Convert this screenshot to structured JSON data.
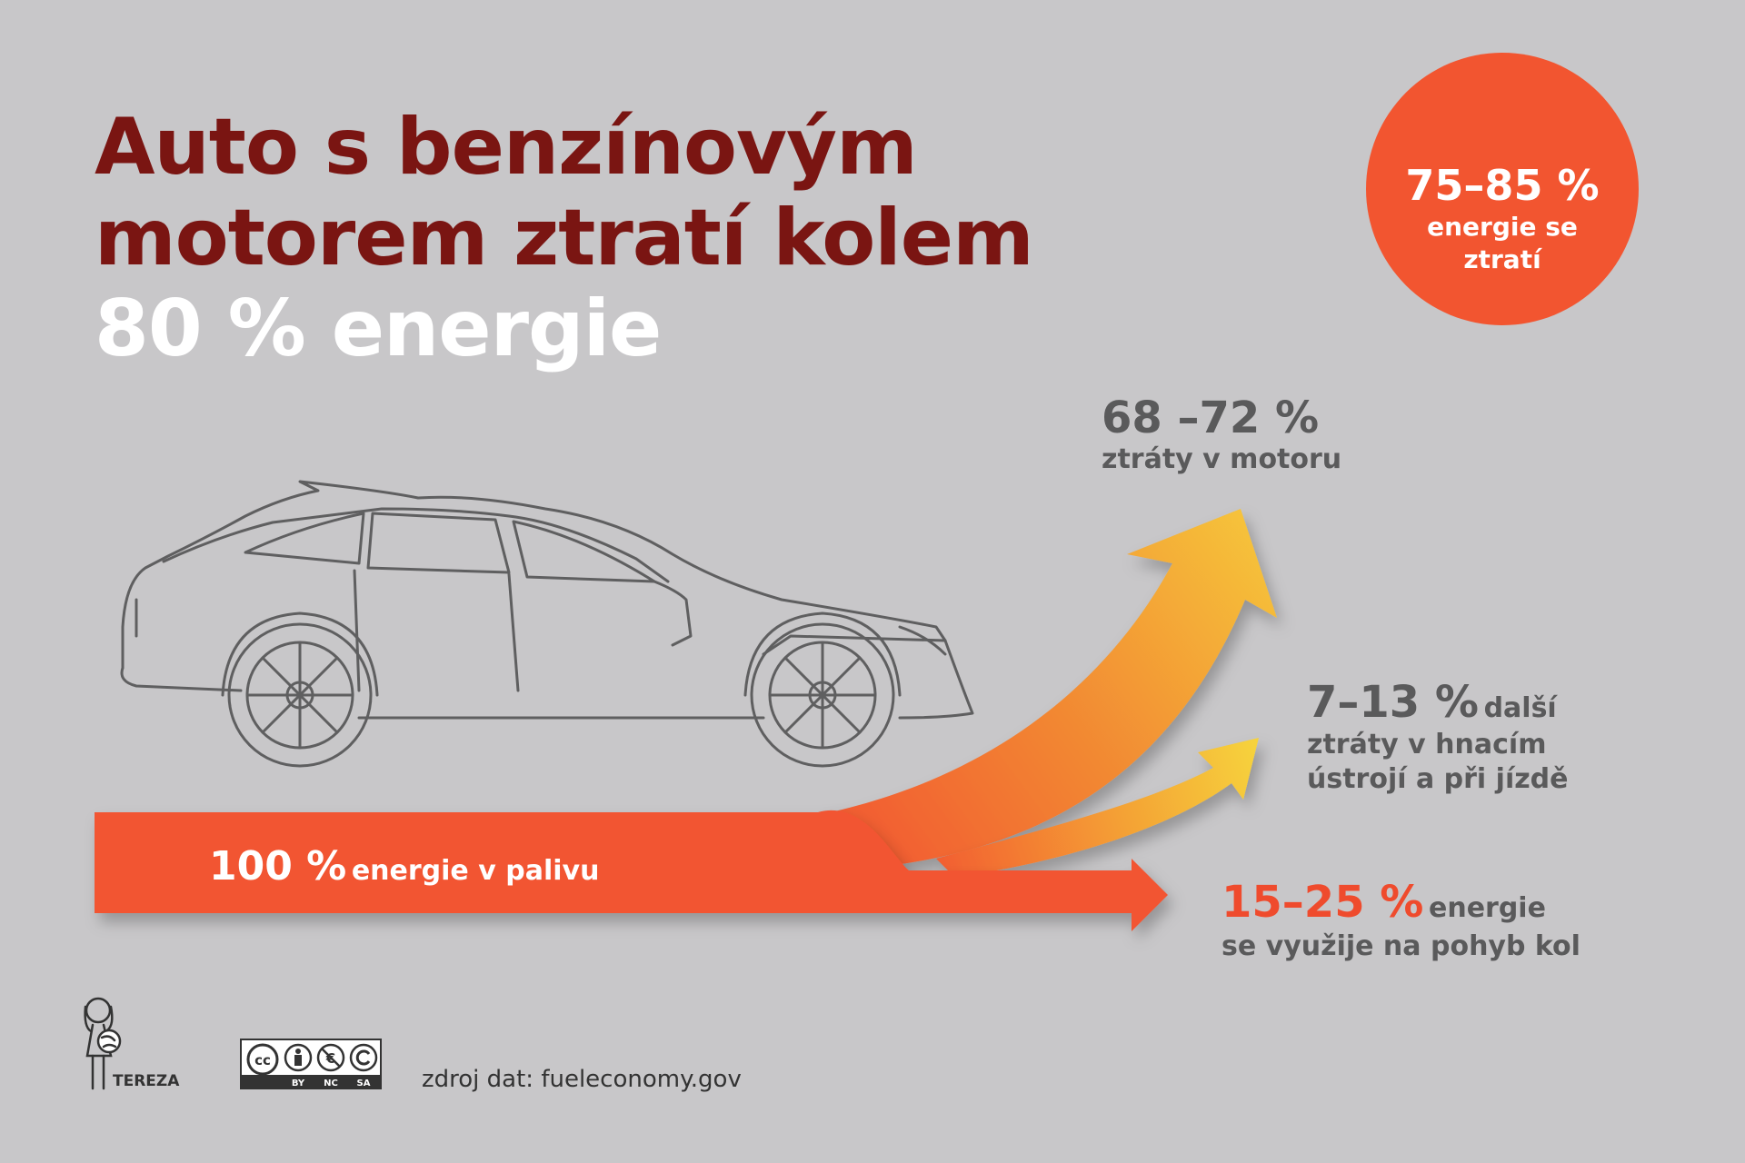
{
  "title": {
    "line1": "Auto s benzínovým",
    "line2": "motorem ztratí kolem",
    "line3": "80 % energie"
  },
  "badge": {
    "value": "75–85 %",
    "text": "energie se ztratí"
  },
  "flows": [
    {
      "value": "68 –72 %",
      "text": "ztráty v motoru"
    },
    {
      "value": "7–13 %",
      "text_inline": "další",
      "text": "ztráty v hnacím ústrojí a při jízdě"
    },
    {
      "value": "15–25 %",
      "text_inline": "energie",
      "text": "se využije na pohyb kol"
    }
  ],
  "input": {
    "value": "100 %",
    "text": "energie v palivu"
  },
  "footer": {
    "logo_label": "TEREZA",
    "license": [
      "BY",
      "NC",
      "SA"
    ],
    "source": "zdroj dat: fueleconomy.gov"
  },
  "colors": {
    "background": "#c8c7c9",
    "title_dark": "#7a1512",
    "accent_orange": "#f25530",
    "arrow_yellow": "#f5c93a",
    "label_gray": "#5a5a5b"
  }
}
